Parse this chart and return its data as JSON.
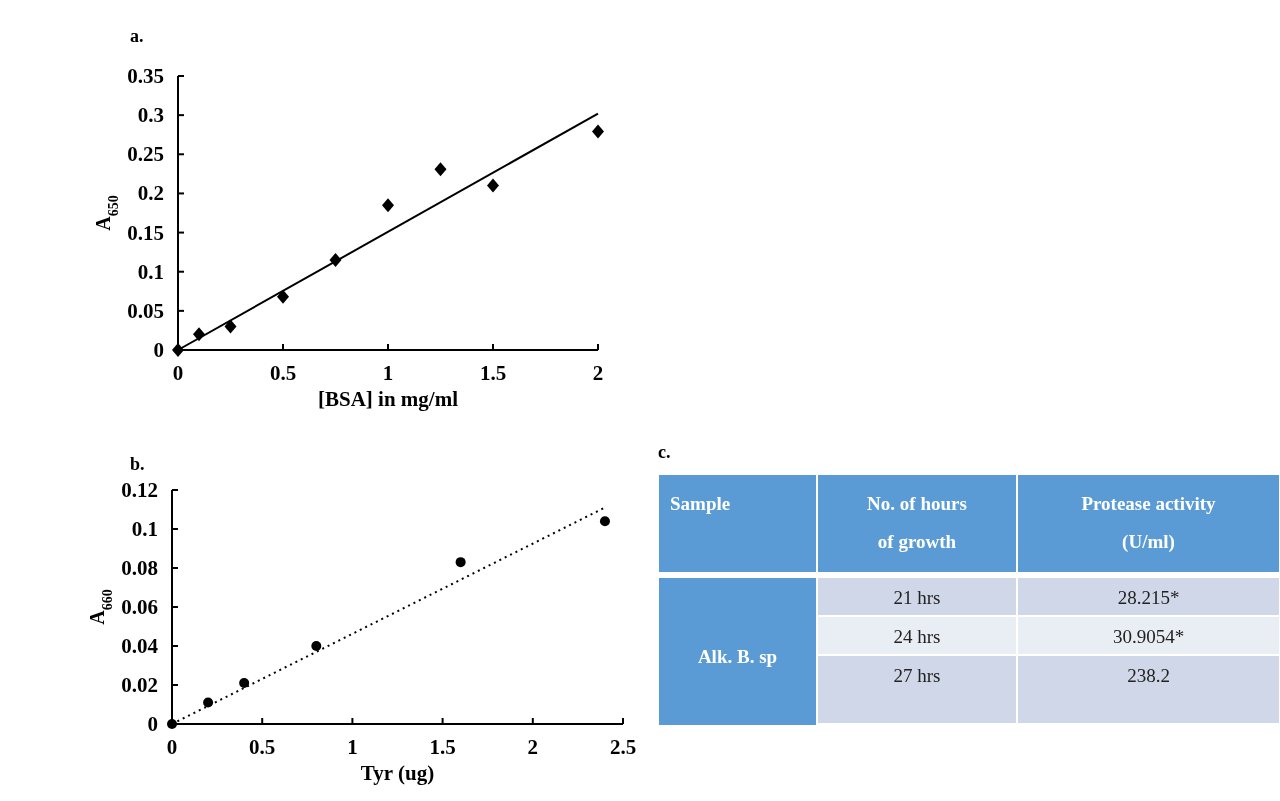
{
  "chart_data": [
    {
      "type": "scatter",
      "title": "a.",
      "xlabel": "[BSA] in mg/ml",
      "ylabel": "A$_{650}$",
      "line_style": "solid",
      "xlim": [
        0,
        2
      ],
      "ylim": [
        0,
        0.35
      ],
      "xticks": [
        0,
        0.5,
        1,
        1.5,
        2
      ],
      "yticks": [
        0,
        0.05,
        0.1,
        0.15,
        0.2,
        0.25,
        0.3,
        0.35
      ],
      "grid": false,
      "series": [
        {
          "type": "scatter",
          "marker": "diamond",
          "color": "#000000",
          "x": [
            0,
            0.1,
            0.25,
            0.5,
            0.75,
            1,
            1.25,
            1.5,
            2
          ],
          "values": [
            0,
            0.02,
            0.03,
            0.068,
            0.115,
            0.185,
            0.231,
            0.21,
            0.279
          ]
        },
        {
          "type": "line",
          "marker": "none",
          "color": "#000000",
          "x": [
            0,
            2
          ],
          "values": [
            0,
            0.302
          ]
        }
      ]
    },
    {
      "type": "scatter",
      "title": "b.",
      "xlabel": "Tyr (ug)",
      "ylabel": "A$_{660}$",
      "line_style": "dotted",
      "xlim": [
        0,
        2.5
      ],
      "ylim": [
        0,
        0.12
      ],
      "xticks": [
        0,
        0.5,
        1,
        1.5,
        2,
        2.5
      ],
      "yticks": [
        0,
        0.02,
        0.04,
        0.06,
        0.08,
        0.1,
        0.12
      ],
      "grid": false,
      "series": [
        {
          "type": "scatter",
          "marker": "circle",
          "color": "#000000",
          "x": [
            0,
            0.2,
            0.4,
            0.8,
            1.6,
            2.4
          ],
          "values": [
            0,
            0.011,
            0.021,
            0.04,
            0.083,
            0.104
          ]
        },
        {
          "type": "line",
          "marker": "none",
          "color": "#000000",
          "x": [
            0,
            2.4
          ],
          "values": [
            0,
            0.111
          ]
        }
      ]
    },
    {
      "type": "other",
      "title": "c.",
      "annotations": [
        "Sample",
        "No. of hours\nof growth",
        "Protease activity\n(U/ml)",
        "Alk. B. sp",
        "21 hrs",
        "28.215*",
        "24 hrs",
        "30.9054*",
        "27 hrs",
        "238.2"
      ]
    }
  ]
}
